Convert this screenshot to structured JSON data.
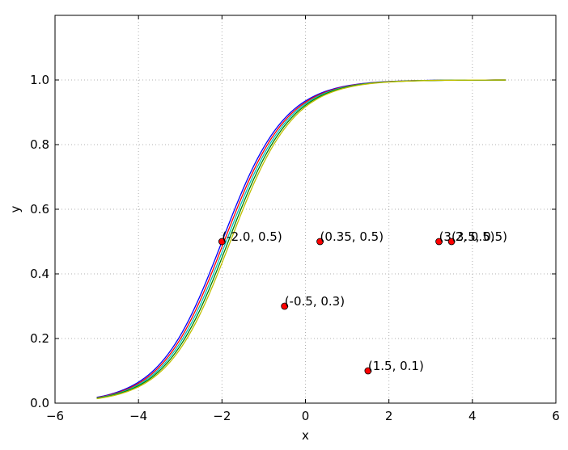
{
  "chart_data": {
    "type": "line",
    "title": "",
    "xlabel": "x",
    "ylabel": "y",
    "xlim": [
      -6,
      6
    ],
    "ylim": [
      0.0,
      1.2
    ],
    "x_ticks": [
      -6,
      -4,
      -2,
      0,
      2,
      4,
      6
    ],
    "x_tick_labels": [
      "−6",
      "−4",
      "−2",
      "0",
      "2",
      "4",
      "6"
    ],
    "y_ticks": [
      0.0,
      0.2,
      0.4,
      0.6,
      0.8,
      1.0
    ],
    "y_tick_labels": [
      "0.0",
      "0.2",
      "0.4",
      "0.6",
      "0.8",
      "1.0"
    ],
    "grid": true,
    "legend": "none",
    "curve_x_range": [
      -5.0,
      4.8
    ],
    "series": [
      {
        "shift": -2.0,
        "color": "#0000ff"
      },
      {
        "shift": -1.95,
        "color": "#ff0000"
      },
      {
        "shift": -1.9,
        "color": "#00bfbf"
      },
      {
        "shift": -1.85,
        "color": "#008000"
      },
      {
        "shift": -1.8,
        "color": "#bfbf00"
      }
    ],
    "curve_scale": 0.75,
    "points": [
      {
        "x": -2.0,
        "y": 0.5,
        "label": "(-2.0, 0.5)"
      },
      {
        "x": 0.35,
        "y": 0.5,
        "label": "(0.35, 0.5)"
      },
      {
        "x": 3.2,
        "y": 0.5,
        "label": "(3.2, 0.5)"
      },
      {
        "x": 3.5,
        "y": 0.5,
        "label": "(3.5, 0.5)"
      },
      {
        "x": -0.5,
        "y": 0.3,
        "label": "(-0.5, 0.3)"
      },
      {
        "x": 1.5,
        "y": 0.1,
        "label": "(1.5, 0.1)"
      }
    ],
    "point_color": "#ff0000"
  }
}
